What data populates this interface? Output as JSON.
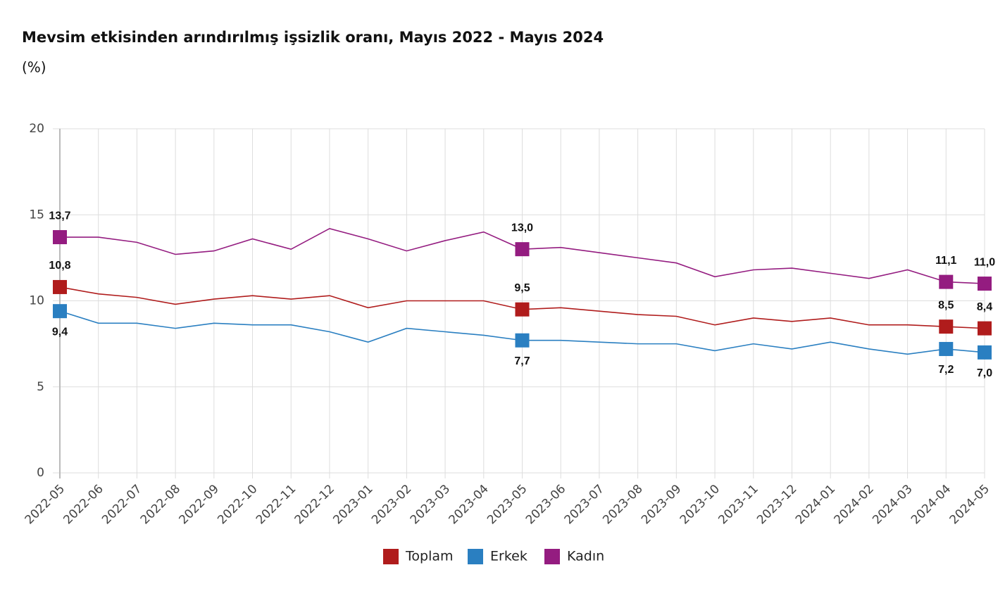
{
  "chart_data": {
    "type": "line",
    "title": "Mevsim etkisinden arındırılmış işsizlik oranı, Mayıs 2022 - Mayıs 2024",
    "subtitle": "(%)",
    "categories": [
      "2022-05",
      "2022-06",
      "2022-07",
      "2022-08",
      "2022-09",
      "2022-10",
      "2022-11",
      "2022-12",
      "2023-01",
      "2023-02",
      "2023-03",
      "2023-04",
      "2023-05",
      "2023-06",
      "2023-07",
      "2023-08",
      "2023-09",
      "2023-10",
      "2023-11",
      "2023-12",
      "2024-01",
      "2024-02",
      "2024-03",
      "2024-04",
      "2024-05"
    ],
    "series": [
      {
        "name": "Toplam",
        "color": "#b01c1c",
        "values": [
          10.8,
          10.4,
          10.2,
          9.8,
          10.1,
          10.3,
          10.1,
          10.3,
          9.6,
          10.0,
          10.0,
          10.0,
          9.5,
          9.6,
          9.4,
          9.2,
          9.1,
          8.6,
          9.0,
          8.8,
          9.0,
          8.6,
          8.6,
          8.5,
          8.4
        ],
        "value_labels": [
          "10,8",
          null,
          null,
          null,
          null,
          null,
          null,
          null,
          null,
          null,
          null,
          null,
          "9,5",
          null,
          null,
          null,
          null,
          null,
          null,
          null,
          null,
          null,
          null,
          "8,5",
          "8,4"
        ]
      },
      {
        "name": "Erkek",
        "color": "#2a7fc1",
        "values": [
          9.4,
          8.7,
          8.7,
          8.4,
          8.7,
          8.6,
          8.6,
          8.2,
          7.6,
          8.4,
          8.2,
          8.0,
          7.7,
          7.7,
          7.6,
          7.5,
          7.5,
          7.1,
          7.5,
          7.2,
          7.6,
          7.2,
          6.9,
          7.2,
          7.0
        ],
        "value_labels": [
          "9,4",
          null,
          null,
          null,
          null,
          null,
          null,
          null,
          null,
          null,
          null,
          null,
          "7,7",
          null,
          null,
          null,
          null,
          null,
          null,
          null,
          null,
          null,
          null,
          "7,2",
          "7,0"
        ]
      },
      {
        "name": "Kadın",
        "color": "#941c80",
        "values": [
          13.7,
          13.7,
          13.4,
          12.7,
          12.9,
          13.6,
          13.0,
          14.2,
          13.6,
          12.9,
          13.5,
          14.0,
          13.0,
          13.1,
          12.8,
          12.5,
          12.2,
          11.4,
          11.8,
          11.9,
          11.6,
          11.3,
          11.8,
          11.1,
          11.0
        ],
        "value_labels": [
          "13,7",
          null,
          null,
          null,
          null,
          null,
          null,
          null,
          null,
          null,
          null,
          null,
          "13,0",
          null,
          null,
          null,
          null,
          null,
          null,
          null,
          null,
          null,
          null,
          "11,1",
          "11,0"
        ]
      }
    ],
    "ylim": [
      0,
      20
    ],
    "yticks": [
      0,
      5,
      10,
      15,
      20
    ],
    "grid": true,
    "legend": "bottom"
  }
}
